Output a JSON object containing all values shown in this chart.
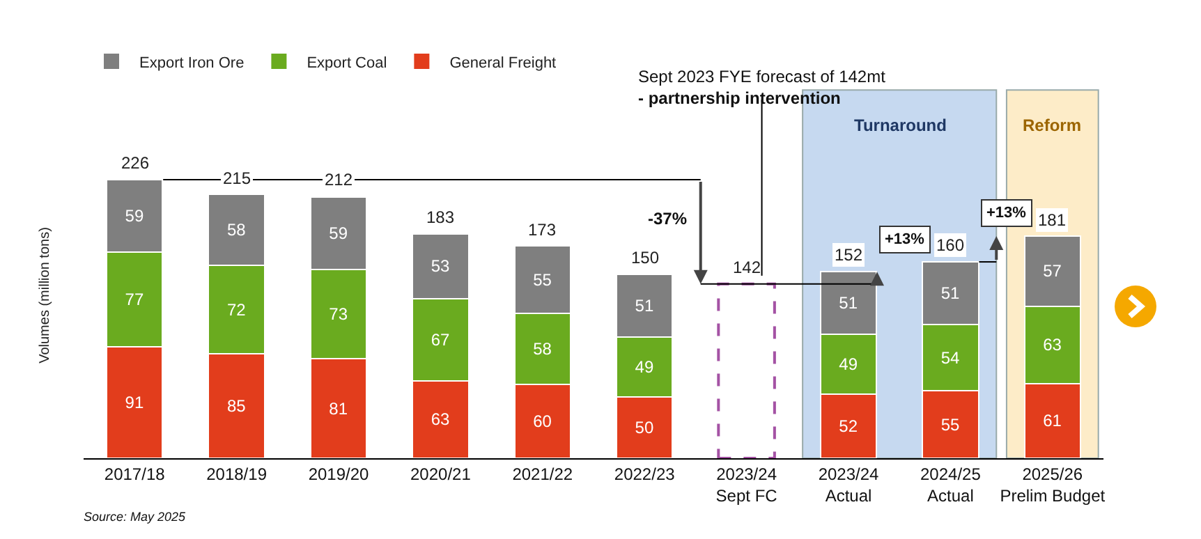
{
  "chart_data": {
    "type": "bar",
    "stacked": true,
    "ylabel": "Volumes (million tons)",
    "categories": [
      "2017/18",
      "2018/19",
      "2019/20",
      "2020/21",
      "2021/22",
      "2022/23",
      "2023/24 Sept FC",
      "2023/24 Actual",
      "2024/25 Actual",
      "2025/26 Prelim Budget"
    ],
    "series": [
      {
        "name": "General Freight",
        "color": "#e23d1c",
        "values": [
          91,
          85,
          81,
          63,
          60,
          50,
          null,
          52,
          55,
          61
        ]
      },
      {
        "name": "Export Coal",
        "color": "#6aab1f",
        "values": [
          77,
          72,
          73,
          67,
          58,
          49,
          null,
          49,
          54,
          63
        ]
      },
      {
        "name": "Export Iron Ore",
        "color": "#7f7f7f",
        "values": [
          59,
          58,
          59,
          53,
          55,
          51,
          null,
          51,
          51,
          57
        ]
      },
      {
        "color": "#a452a4",
        "line_style": "dashed",
        "values": [
          null,
          null,
          null,
          null,
          null,
          null,
          142,
          null,
          null,
          null
        ]
      }
    ],
    "totals": [
      "226",
      "215",
      "212",
      "183",
      "173",
      "150",
      null,
      "152",
      "160",
      "181"
    ],
    "data_labels": true,
    "tick_labels": "x",
    "grid": false,
    "legend": "top left",
    "bands": [
      {
        "axis": "x",
        "from": "2023/24 Actual",
        "to": "2024/25 Actual",
        "label": "Turnaround",
        "color": "#c6d9f0"
      },
      {
        "axis": "x",
        "from": "2025/26 Prelim Budget",
        "to": "2025/26 Prelim Budget",
        "label": "Reform",
        "color": "#fdecc8"
      }
    ],
    "annotations": [
      "Sept 2023 FYE forecast of 142mt\n- partnership intervention",
      "-37%",
      "+13%",
      "+13%",
      "Source: May 2025"
    ]
  }
}
